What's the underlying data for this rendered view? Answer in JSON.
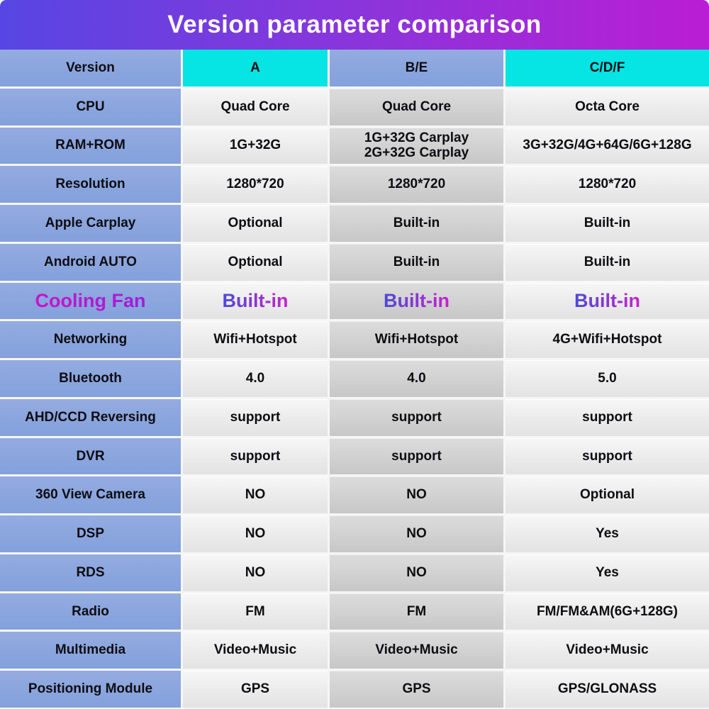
{
  "title": "Version parameter comparison",
  "header": {
    "columns": [
      "Version",
      "A",
      "B/E",
      "C/D/F"
    ]
  },
  "rows": [
    {
      "label": "CPU",
      "a": "Quad Core",
      "be": "Quad Core",
      "cdf": "Octa Core",
      "special": false
    },
    {
      "label": "RAM+ROM",
      "a": "1G+32G",
      "be": "1G+32G Carplay\n2G+32G Carplay",
      "cdf": "3G+32G/4G+64G/6G+128G",
      "special": false
    },
    {
      "label": "Resolution",
      "a": "1280*720",
      "be": "1280*720",
      "cdf": "1280*720",
      "special": false
    },
    {
      "label": "Apple Carplay",
      "a": "Optional",
      "be": "Built-in",
      "cdf": "Built-in",
      "special": false
    },
    {
      "label": "Android AUTO",
      "a": "Optional",
      "be": "Built-in",
      "cdf": "Built-in",
      "special": false
    },
    {
      "label": "Cooling Fan",
      "a": "Built-in",
      "be": "Built-in",
      "cdf": "Built-in",
      "special": true
    },
    {
      "label": "Networking",
      "a": "Wifi+Hotspot",
      "be": "Wifi+Hotspot",
      "cdf": "4G+Wifi+Hotspot",
      "special": false
    },
    {
      "label": "Bluetooth",
      "a": "4.0",
      "be": "4.0",
      "cdf": "5.0",
      "special": false
    },
    {
      "label": "AHD/CCD Reversing",
      "a": "support",
      "be": "support",
      "cdf": "support",
      "special": false
    },
    {
      "label": "DVR",
      "a": "support",
      "be": "support",
      "cdf": "support",
      "special": false
    },
    {
      "label": "360 View Camera",
      "a": "NO",
      "be": "NO",
      "cdf": "Optional",
      "special": false
    },
    {
      "label": "DSP",
      "a": "NO",
      "be": "NO",
      "cdf": "Yes",
      "special": false
    },
    {
      "label": "RDS",
      "a": "NO",
      "be": "NO",
      "cdf": "Yes",
      "special": false
    },
    {
      "label": "Radio",
      "a": "FM",
      "be": "FM",
      "cdf": "FM/FM&AM(6G+128G)",
      "special": false
    },
    {
      "label": "Multimedia",
      "a": "Video+Music",
      "be": "Video+Music",
      "cdf": "Video+Music",
      "special": false
    },
    {
      "label": "Positioning Module",
      "a": "GPS",
      "be": "GPS",
      "cdf": "GPS/GLONASS",
      "special": false
    }
  ],
  "colors": {
    "grad_left": "#5746e3",
    "grad_right": "#ba1ed4",
    "cyan": "#06e4e4",
    "periwinkle": "#8ca6de",
    "cell_light_bottom": "#e3e3e3",
    "cell_dark_bottom": "#c7c7c7",
    "special_label_start": "#c716c7",
    "special_label_end": "#9d1fd9",
    "special_value_start": "#4d49d7",
    "special_value_end": "#c722cd",
    "text_color": "#0d0d12"
  },
  "chart_data": {
    "type": "table",
    "title": "Version parameter comparison",
    "columns": [
      "Version",
      "A",
      "B/E",
      "C/D/F"
    ],
    "rows": [
      [
        "CPU",
        "Quad Core",
        "Quad Core",
        "Octa Core"
      ],
      [
        "RAM+ROM",
        "1G+32G",
        "1G+32G Carplay 2G+32G Carplay",
        "3G+32G/4G+64G/6G+128G"
      ],
      [
        "Resolution",
        "1280*720",
        "1280*720",
        "1280*720"
      ],
      [
        "Apple Carplay",
        "Optional",
        "Built-in",
        "Built-in"
      ],
      [
        "Android AUTO",
        "Optional",
        "Built-in",
        "Built-in"
      ],
      [
        "Cooling Fan",
        "Built-in",
        "Built-in",
        "Built-in"
      ],
      [
        "Networking",
        "Wifi+Hotspot",
        "Wifi+Hotspot",
        "4G+Wifi+Hotspot"
      ],
      [
        "Bluetooth",
        "4.0",
        "4.0",
        "5.0"
      ],
      [
        "AHD/CCD Reversing",
        "support",
        "support",
        "support"
      ],
      [
        "DVR",
        "support",
        "support",
        "support"
      ],
      [
        "360 View Camera",
        "NO",
        "NO",
        "Optional"
      ],
      [
        "DSP",
        "NO",
        "NO",
        "Yes"
      ],
      [
        "RDS",
        "NO",
        "NO",
        "Yes"
      ],
      [
        "Radio",
        "FM",
        "FM",
        "FM/FM&AM(6G+128G)"
      ],
      [
        "Multimedia",
        "Video+Music",
        "Video+Music",
        "Video+Music"
      ],
      [
        "Positioning Module",
        "GPS",
        "GPS",
        "GPS/GLONASS"
      ]
    ]
  }
}
